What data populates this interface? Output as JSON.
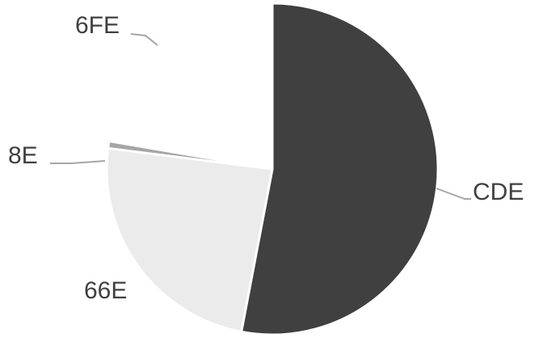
{
  "chart_data": {
    "type": "pie",
    "title": "",
    "legend": "none",
    "slices": [
      {
        "label": "CDE",
        "value": 53,
        "color": "#404040"
      },
      {
        "label": "66E",
        "value": 24,
        "color": "#ebebeb"
      },
      {
        "label": "8E",
        "value": 0.7,
        "color": "#a6a6a6"
      },
      {
        "label": "6FE",
        "value": 22.3,
        "color": "#ffffff"
      }
    ]
  }
}
